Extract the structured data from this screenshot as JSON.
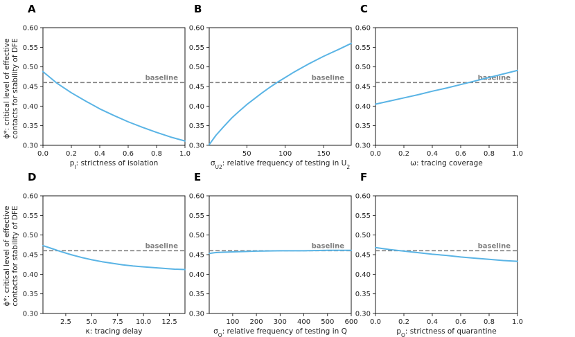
{
  "figure": {
    "ylabel_line1": "ϕ*: critical level of effective",
    "ylabel_line2": "contacts for stability of DFE",
    "baseline_value": 0.46,
    "baseline_label": "baseline",
    "curve_color": "#5ab4e5",
    "baseline_color": "#7f7f7f"
  },
  "chart_data": [
    {
      "panel": "A",
      "type": "line",
      "xlabel": "p_I: strictness of isolation",
      "xlim": [
        0.0,
        1.0
      ],
      "ylim": [
        0.3,
        0.6
      ],
      "xticks": [
        0.0,
        0.2,
        0.4,
        0.6,
        0.8,
        1.0
      ],
      "xtick_labels": [
        "0.0",
        "0.2",
        "0.4",
        "0.6",
        "0.8",
        "1.0"
      ],
      "yticks": [
        0.3,
        0.35,
        0.4,
        0.45,
        0.5,
        0.55,
        0.6
      ],
      "ytick_labels": [
        "0.30",
        "0.35",
        "0.40",
        "0.45",
        "0.50",
        "0.55",
        "0.60"
      ],
      "x": [
        0.0,
        0.1,
        0.2,
        0.3,
        0.4,
        0.5,
        0.6,
        0.7,
        0.8,
        0.9,
        1.0
      ],
      "y": [
        0.488,
        0.458,
        0.434,
        0.413,
        0.393,
        0.376,
        0.36,
        0.346,
        0.333,
        0.321,
        0.311
      ]
    },
    {
      "panel": "B",
      "type": "line",
      "xlabel": "σ_U2: relative frequency of testing in U_2",
      "xlim": [
        1,
        186
      ],
      "ylim": [
        0.3,
        0.6
      ],
      "xticks": [
        50,
        100,
        150
      ],
      "xtick_labels": [
        "50",
        "100",
        "150"
      ],
      "yticks": [
        0.3,
        0.35,
        0.4,
        0.45,
        0.5,
        0.55,
        0.6
      ],
      "ytick_labels": [
        "0.30",
        "0.35",
        "0.40",
        "0.45",
        "0.50",
        "0.55",
        "0.60"
      ],
      "x": [
        1,
        10,
        20,
        30,
        40,
        50,
        60,
        70,
        80,
        90,
        100,
        110,
        120,
        130,
        140,
        150,
        160,
        170,
        186
      ],
      "y": [
        0.302,
        0.326,
        0.348,
        0.369,
        0.387,
        0.404,
        0.419,
        0.434,
        0.448,
        0.461,
        0.473,
        0.485,
        0.496,
        0.507,
        0.517,
        0.527,
        0.536,
        0.545,
        0.56
      ]
    },
    {
      "panel": "C",
      "type": "line",
      "xlabel": "ω: tracing coverage",
      "xlim": [
        0.0,
        1.0
      ],
      "ylim": [
        0.3,
        0.6
      ],
      "xticks": [
        0.0,
        0.2,
        0.4,
        0.6,
        0.8,
        1.0
      ],
      "xtick_labels": [
        "0.0",
        "0.2",
        "0.4",
        "0.6",
        "0.8",
        "1.0"
      ],
      "yticks": [
        0.3,
        0.35,
        0.4,
        0.45,
        0.5,
        0.55,
        0.6
      ],
      "ytick_labels": [
        "0.30",
        "0.35",
        "0.40",
        "0.45",
        "0.50",
        "0.55",
        "0.60"
      ],
      "x": [
        0.0,
        0.1,
        0.2,
        0.3,
        0.4,
        0.5,
        0.6,
        0.7,
        0.8,
        0.9,
        1.0
      ],
      "y": [
        0.405,
        0.413,
        0.421,
        0.429,
        0.438,
        0.446,
        0.455,
        0.464,
        0.473,
        0.482,
        0.491
      ]
    },
    {
      "panel": "D",
      "type": "line",
      "xlabel": "κ: tracing delay",
      "xlim": [
        0.3,
        14.0
      ],
      "ylim": [
        0.3,
        0.6
      ],
      "xticks": [
        2.5,
        5.0,
        7.5,
        10.0,
        12.5
      ],
      "xtick_labels": [
        "2.5",
        "5.0",
        "7.5",
        "10.0",
        "12.5"
      ],
      "yticks": [
        0.3,
        0.35,
        0.4,
        0.45,
        0.5,
        0.55,
        0.6
      ],
      "ytick_labels": [
        "0.30",
        "0.35",
        "0.40",
        "0.45",
        "0.50",
        "0.55",
        "0.60"
      ],
      "x": [
        0.3,
        1.0,
        2.0,
        3.0,
        4.0,
        5.0,
        6.0,
        7.0,
        8.0,
        9.0,
        10.0,
        11.0,
        12.0,
        13.0,
        14.0
      ],
      "y": [
        0.473,
        0.467,
        0.458,
        0.45,
        0.443,
        0.437,
        0.432,
        0.428,
        0.424,
        0.421,
        0.419,
        0.417,
        0.415,
        0.413,
        0.412
      ]
    },
    {
      "panel": "E",
      "type": "line",
      "xlabel": "σ_Q: relative frequency of testing in Q",
      "xlim": [
        1,
        600
      ],
      "ylim": [
        0.3,
        0.6
      ],
      "xticks": [
        100,
        200,
        300,
        400,
        500,
        600
      ],
      "xtick_labels": [
        "100",
        "200",
        "300",
        "400",
        "500",
        "600"
      ],
      "yticks": [
        0.3,
        0.35,
        0.4,
        0.45,
        0.5,
        0.55,
        0.6
      ],
      "ytick_labels": [
        "0.30",
        "0.35",
        "0.40",
        "0.45",
        "0.50",
        "0.55",
        "0.60"
      ],
      "x": [
        1,
        25,
        50,
        100,
        150,
        200,
        300,
        400,
        500,
        600
      ],
      "y": [
        0.453,
        0.455,
        0.456,
        0.457,
        0.458,
        0.459,
        0.46,
        0.46,
        0.461,
        0.461
      ]
    },
    {
      "panel": "F",
      "type": "line",
      "xlabel": "p_Q: strictness of quarantine",
      "xlim": [
        0.0,
        1.0
      ],
      "ylim": [
        0.3,
        0.6
      ],
      "xticks": [
        0.0,
        0.2,
        0.4,
        0.6,
        0.8,
        1.0
      ],
      "xtick_labels": [
        "0.0",
        "0.2",
        "0.4",
        "0.6",
        "0.8",
        "1.0"
      ],
      "yticks": [
        0.3,
        0.35,
        0.4,
        0.45,
        0.5,
        0.55,
        0.6
      ],
      "ytick_labels": [
        "0.30",
        "0.35",
        "0.40",
        "0.45",
        "0.50",
        "0.55",
        "0.60"
      ],
      "x": [
        0.0,
        0.1,
        0.2,
        0.3,
        0.4,
        0.5,
        0.6,
        0.7,
        0.8,
        0.9,
        1.0
      ],
      "y": [
        0.468,
        0.463,
        0.459,
        0.455,
        0.451,
        0.448,
        0.444,
        0.441,
        0.438,
        0.435,
        0.433
      ]
    }
  ]
}
